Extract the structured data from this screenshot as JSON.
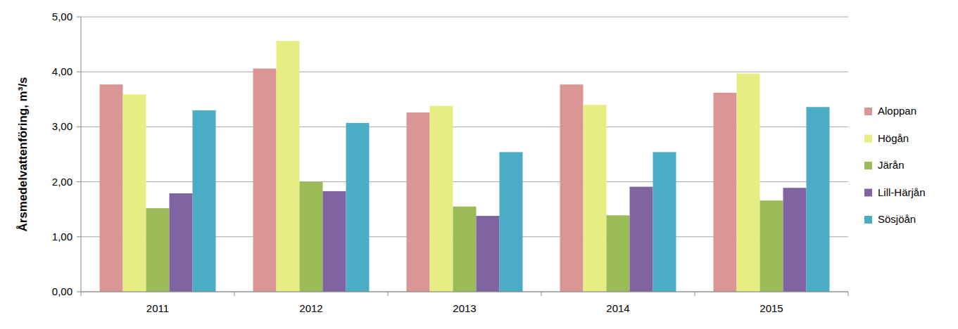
{
  "chart_data": {
    "type": "bar",
    "y_label": "Årsmedelvattenföring, m³/s",
    "categories": [
      "2011",
      "2012",
      "2013",
      "2014",
      "2015"
    ],
    "series": [
      {
        "name": "Aloppan",
        "color": "#d99694",
        "values": [
          3.77,
          4.06,
          3.26,
          3.77,
          3.62
        ]
      },
      {
        "name": "Högån",
        "color": "#e6ed82",
        "values": [
          3.59,
          4.56,
          3.38,
          3.4,
          3.97
        ]
      },
      {
        "name": "Järån",
        "color": "#9bbb59",
        "values": [
          1.52,
          2.0,
          1.55,
          1.39,
          1.66
        ]
      },
      {
        "name": "Lill-Härjån",
        "color": "#8064a2",
        "values": [
          1.79,
          1.83,
          1.38,
          1.91,
          1.89
        ]
      },
      {
        "name": "Sösjöån",
        "color": "#4bacc6",
        "values": [
          3.3,
          3.07,
          2.54,
          2.54,
          3.36
        ]
      }
    ],
    "ylim": [
      0,
      5
    ],
    "yticks": [
      {
        "value": 0,
        "label": "0,00"
      },
      {
        "value": 1,
        "label": "1,00"
      },
      {
        "value": 2,
        "label": "2,00"
      },
      {
        "value": 3,
        "label": "3,00"
      },
      {
        "value": 4,
        "label": "4,00"
      },
      {
        "value": 5,
        "label": "5,00"
      }
    ],
    "grid": true,
    "legend": "right"
  }
}
